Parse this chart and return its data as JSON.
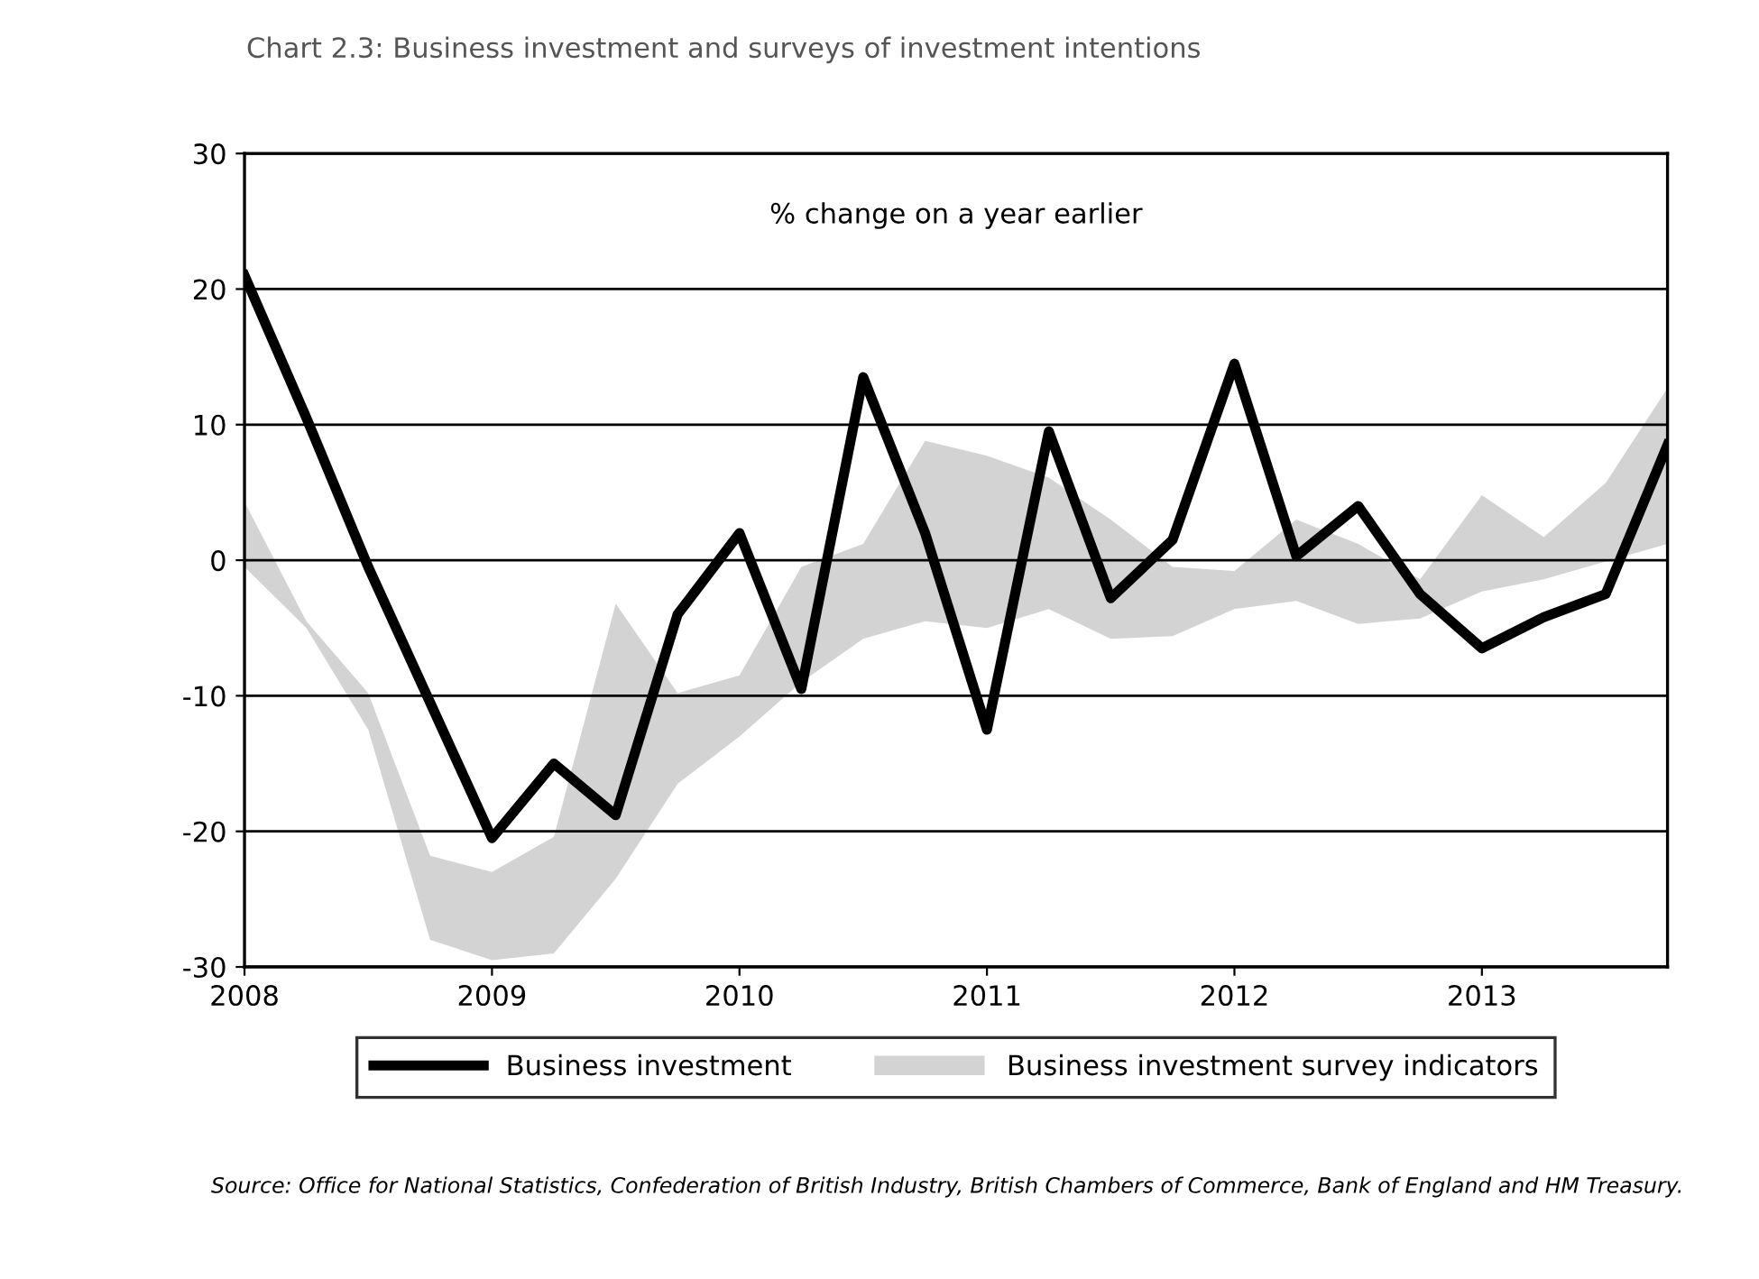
{
  "chart_data": {
    "type": "line",
    "title": "Chart 2.3: Business investment and surveys of investment intentions",
    "annotations": [
      "% change on a year earlier",
      "Source: Office for National Statistics, Confederation of British Industry, British Chambers of Commerce, Bank of England and HM Treasury."
    ],
    "x": [
      2008,
      2008.25,
      2008.5,
      2008.75,
      2009,
      2009.25,
      2009.5,
      2009.75,
      2010,
      2010.25,
      2010.5,
      2010.75,
      2011,
      2011.25,
      2011.5,
      2011.75,
      2012,
      2012.25,
      2012.5,
      2012.75,
      2013,
      2013.25,
      2013.5,
      2013.75
    ],
    "series": [
      {
        "name": "Business investment",
        "color": "#000000",
        "values": [
          21,
          10.5,
          -0.5,
          -10.5,
          -20.5,
          -15,
          -18.8,
          -4,
          2,
          -9.5,
          13.5,
          2,
          -12.5,
          9.5,
          -2.8,
          1.5,
          14.5,
          0.3,
          4,
          -2.5,
          -6.5,
          -4.2,
          -2.5,
          8.5
        ]
      },
      {
        "name": "Business investment survey indicators",
        "color": "#d3d3d3",
        "values": [
          null,
          null,
          null,
          null,
          null,
          null,
          null,
          null,
          null,
          null,
          null,
          null,
          null,
          null,
          null,
          null,
          null,
          null,
          null,
          null,
          null,
          null,
          null,
          null
        ],
        "upper": [
          4.3,
          -4.5,
          -9.8,
          -21.8,
          -23,
          -20.4,
          -3.2,
          -9.8,
          -8.5,
          -0.5,
          1.2,
          8.8,
          7.7,
          6.1,
          3,
          -0.5,
          -0.8,
          3,
          1.2,
          -1.4,
          4.8,
          1.7,
          5.7,
          12.7
        ],
        "lower": [
          -0.5,
          -5,
          -12.5,
          -28,
          -29.5,
          -29,
          -23.5,
          -16.5,
          -13,
          -9,
          -5.8,
          -4.5,
          -5,
          -3.6,
          -5.8,
          -5.6,
          -3.6,
          -3,
          -4.7,
          -4.3,
          -2.3,
          -1.4,
          -0.1,
          1.2
        ]
      }
    ],
    "xlim": [
      2008,
      2013.75
    ],
    "xticks": [
      2008,
      2009,
      2010,
      2011,
      2012,
      2013
    ],
    "ylim": [
      -30,
      30
    ],
    "yticks": [
      -30,
      -20,
      -10,
      0,
      10,
      20,
      30
    ],
    "grid": "y",
    "legend": "bottom",
    "marker": "none",
    "line_style": "solid"
  }
}
